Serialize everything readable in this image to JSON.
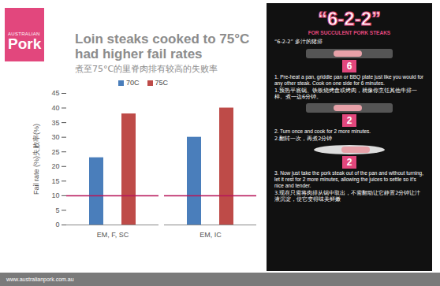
{
  "chart_data": {
    "type": "bar",
    "title": "Loin steaks cooked to 75°C had higher fail rates",
    "subtitle": "煮至75°C的里脊肉排有较高的失败率",
    "y_label": "Fail rate (%)失败率(%)",
    "categories": [
      "EM, F, SC",
      "EM, IC"
    ],
    "series": [
      {
        "name": "70C",
        "color": "#4a7ebb",
        "values": [
          23,
          30
        ]
      },
      {
        "name": "75C",
        "color": "#be4b48",
        "values": [
          38,
          40
        ]
      }
    ],
    "ylim": [
      0,
      45
    ],
    "yticks": [
      0,
      5,
      10,
      15,
      20,
      25,
      30,
      35,
      40,
      45
    ],
    "grid": false,
    "legend": "top",
    "reference_line": {
      "value": 10,
      "color": "#b8165a"
    }
  },
  "slide": {
    "logo": [
      "AUSTRALIAN",
      "Pork"
    ],
    "footer": "www.australianpork.com.au",
    "infographic": {
      "heading": "“6-2-2”",
      "subheading": "FOR SUCCULENT PORK STEAKS",
      "subheading_cn": "“6-2-2” 多汁的猪排",
      "steps": [
        {
          "number": "6",
          "text": "1. Pre-heat a pan, griddle pan or BBQ plate just like you would for any other steak. Cook on one side for 6 minutes.",
          "text_cn": "1.预热平底锅、铁板烧烤盘或烤肉，就像你烹饪其他牛排一样。煮一边6分钟。"
        },
        {
          "number": "2",
          "text": "2. Turn once and cook for 2 more minutes.",
          "text_cn": "2.翻转一次，再煮2分钟"
        },
        {
          "number": "2",
          "text": "3. Now just take the pork steak out of the pan and without turning, let it rest for 2 more minutes, allowing the juices to settle so it's nice and tender.",
          "text_cn": "3.现在只需将肉排从锅中取出，不需翻动让它静置2分钟让汁液沉淀，使它变得味美鲜嫩"
        }
      ]
    }
  }
}
